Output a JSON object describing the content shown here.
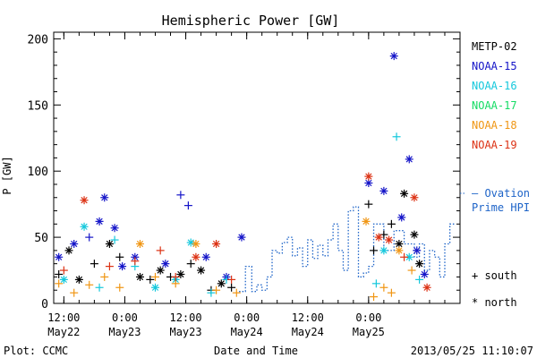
{
  "chart_data": {
    "type": "scatter",
    "title": "Hemispheric Power [GW]",
    "ylabel": "P [GW]",
    "xlabel": "Date and Time",
    "footer_left": "Plot: CCMC",
    "footer_right": "2013/05/25 11:10:07",
    "xlim": [
      "2013-05-22 10:00",
      "2013-05-25 18:00"
    ],
    "ylim": [
      0,
      205
    ],
    "y_ticks": [
      0,
      50,
      100,
      150,
      200
    ],
    "x_ticks": [
      {
        "x": "2013-05-22 12:00",
        "line1": "12:00",
        "line2": "May22"
      },
      {
        "x": "2013-05-23 00:00",
        "line1": "0:00",
        "line2": "May23"
      },
      {
        "x": "2013-05-23 12:00",
        "line1": "12:00",
        "line2": "May23"
      },
      {
        "x": "2013-05-24 00:00",
        "line1": "0:00",
        "line2": "May24"
      },
      {
        "x": "2013-05-24 12:00",
        "line1": "12:00",
        "line2": "May24"
      },
      {
        "x": "2013-05-25 00:00",
        "line1": "0:00",
        "line2": "May25"
      }
    ],
    "hemisphere_legend": [
      {
        "label": "+ south",
        "symbol": "plus"
      },
      {
        "label": "* north",
        "symbol": "star"
      }
    ],
    "ovation": {
      "name": "— Ovation",
      "name2": "Prime HPI",
      "color": "#1e64c8",
      "points": [
        [
          "2013-05-23 22:30",
          9
        ],
        [
          "2013-05-23 23:45",
          28
        ],
        [
          "2013-05-24 01:00",
          9
        ],
        [
          "2013-05-24 02:00",
          14
        ],
        [
          "2013-05-24 03:00",
          10
        ],
        [
          "2013-05-24 04:00",
          20
        ],
        [
          "2013-05-24 05:00",
          40
        ],
        [
          "2013-05-24 06:00",
          38
        ],
        [
          "2013-05-24 07:00",
          46
        ],
        [
          "2013-05-24 08:00",
          50
        ],
        [
          "2013-05-24 09:00",
          36
        ],
        [
          "2013-05-24 10:00",
          42
        ],
        [
          "2013-05-24 11:00",
          28
        ],
        [
          "2013-05-24 12:00",
          48
        ],
        [
          "2013-05-24 13:00",
          34
        ],
        [
          "2013-05-24 14:00",
          44
        ],
        [
          "2013-05-24 15:00",
          36
        ],
        [
          "2013-05-24 16:00",
          48
        ],
        [
          "2013-05-24 17:00",
          60
        ],
        [
          "2013-05-24 18:00",
          40
        ],
        [
          "2013-05-24 19:00",
          25
        ],
        [
          "2013-05-24 20:00",
          70
        ],
        [
          "2013-05-24 21:00",
          73
        ],
        [
          "2013-05-24 22:00",
          20
        ],
        [
          "2013-05-24 23:00",
          23
        ],
        [
          "2013-05-25 00:00",
          28
        ],
        [
          "2013-05-25 01:00",
          60
        ],
        [
          "2013-05-25 03:00",
          40
        ],
        [
          "2013-05-25 05:00",
          55
        ],
        [
          "2013-05-25 07:00",
          45
        ],
        [
          "2013-05-25 09:00",
          35
        ],
        [
          "2013-05-25 10:00",
          45
        ],
        [
          "2013-05-25 11:00",
          25
        ],
        [
          "2013-05-25 12:00",
          40
        ],
        [
          "2013-05-25 13:00",
          35
        ],
        [
          "2013-05-25 14:00",
          20
        ],
        [
          "2013-05-25 15:00",
          45
        ],
        [
          "2013-05-25 16:00",
          60
        ],
        [
          "2013-05-25 17:00",
          60
        ]
      ]
    },
    "series": [
      {
        "name": "METP-02",
        "color": "#000000",
        "points": [
          [
            "2013-05-22 11:00",
            22,
            "plus"
          ],
          [
            "2013-05-22 13:00",
            40,
            "star"
          ],
          [
            "2013-05-22 15:00",
            18,
            "star"
          ],
          [
            "2013-05-22 18:00",
            30,
            "plus"
          ],
          [
            "2013-05-22 21:00",
            45,
            "star"
          ],
          [
            "2013-05-22 23:00",
            35,
            "plus"
          ],
          [
            "2013-05-23 03:00",
            20,
            "star"
          ],
          [
            "2013-05-23 05:00",
            18,
            "plus"
          ],
          [
            "2013-05-23 07:00",
            25,
            "star"
          ],
          [
            "2013-05-23 09:00",
            20,
            "plus"
          ],
          [
            "2013-05-23 11:00",
            22,
            "star"
          ],
          [
            "2013-05-23 13:00",
            30,
            "plus"
          ],
          [
            "2013-05-23 15:00",
            25,
            "star"
          ],
          [
            "2013-05-23 17:00",
            10,
            "plus"
          ],
          [
            "2013-05-23 19:00",
            15,
            "star"
          ],
          [
            "2013-05-23 21:00",
            12,
            "plus"
          ],
          [
            "2013-05-25 00:00",
            75,
            "plus"
          ],
          [
            "2013-05-25 01:00",
            40,
            "plus"
          ],
          [
            "2013-05-25 03:00",
            52,
            "plus"
          ],
          [
            "2013-05-25 04:30",
            60,
            "plus"
          ],
          [
            "2013-05-25 06:00",
            45,
            "star"
          ],
          [
            "2013-05-25 07:00",
            83,
            "star"
          ],
          [
            "2013-05-25 09:00",
            52,
            "star"
          ],
          [
            "2013-05-25 10:00",
            30,
            "star"
          ]
        ]
      },
      {
        "name": "NOAA-15",
        "color": "#1414c8",
        "points": [
          [
            "2013-05-22 11:00",
            35,
            "star"
          ],
          [
            "2013-05-22 14:00",
            45,
            "star"
          ],
          [
            "2013-05-22 17:00",
            50,
            "plus"
          ],
          [
            "2013-05-22 19:00",
            62,
            "star"
          ],
          [
            "2013-05-22 20:00",
            80,
            "star"
          ],
          [
            "2013-05-22 22:00",
            57,
            "star"
          ],
          [
            "2013-05-22 23:30",
            28,
            "star"
          ],
          [
            "2013-05-23 02:00",
            35,
            "star"
          ],
          [
            "2013-05-23 08:00",
            30,
            "star"
          ],
          [
            "2013-05-23 11:00",
            82,
            "plus"
          ],
          [
            "2013-05-23 12:30",
            74,
            "plus"
          ],
          [
            "2013-05-23 16:00",
            35,
            "star"
          ],
          [
            "2013-05-23 20:00",
            20,
            "star"
          ],
          [
            "2013-05-23 23:00",
            50,
            "star"
          ],
          [
            "2013-05-25 00:00",
            91,
            "star"
          ],
          [
            "2013-05-25 03:00",
            85,
            "star"
          ],
          [
            "2013-05-25 05:00",
            187,
            "star"
          ],
          [
            "2013-05-25 06:30",
            65,
            "star"
          ],
          [
            "2013-05-25 08:00",
            109,
            "star"
          ],
          [
            "2013-05-25 09:30",
            40,
            "star"
          ],
          [
            "2013-05-25 11:00",
            22,
            "star"
          ]
        ]
      },
      {
        "name": "NOAA-16",
        "color": "#14c8dc",
        "points": [
          [
            "2013-05-22 12:00",
            18,
            "star"
          ],
          [
            "2013-05-22 16:00",
            58,
            "star"
          ],
          [
            "2013-05-22 19:00",
            12,
            "plus"
          ],
          [
            "2013-05-22 22:00",
            48,
            "plus"
          ],
          [
            "2013-05-23 02:00",
            28,
            "plus"
          ],
          [
            "2013-05-23 06:00",
            12,
            "star"
          ],
          [
            "2013-05-23 10:00",
            18,
            "star"
          ],
          [
            "2013-05-23 13:00",
            46,
            "star"
          ],
          [
            "2013-05-23 17:00",
            8,
            "plus"
          ],
          [
            "2013-05-23 20:00",
            18,
            "plus"
          ],
          [
            "2013-05-25 01:30",
            15,
            "plus"
          ],
          [
            "2013-05-25 03:00",
            40,
            "star"
          ],
          [
            "2013-05-25 05:30",
            126,
            "plus"
          ],
          [
            "2013-05-25 08:00",
            35,
            "star"
          ],
          [
            "2013-05-25 10:00",
            18,
            "plus"
          ]
        ]
      },
      {
        "name": "NOAA-17",
        "color": "#14dc64",
        "points": []
      },
      {
        "name": "NOAA-18",
        "color": "#f09614",
        "points": [
          [
            "2013-05-22 11:00",
            15,
            "plus"
          ],
          [
            "2013-05-22 14:00",
            8,
            "plus"
          ],
          [
            "2013-05-22 17:00",
            14,
            "plus"
          ],
          [
            "2013-05-22 20:00",
            20,
            "plus"
          ],
          [
            "2013-05-22 23:00",
            12,
            "plus"
          ],
          [
            "2013-05-23 03:00",
            45,
            "star"
          ],
          [
            "2013-05-23 06:00",
            20,
            "plus"
          ],
          [
            "2013-05-23 10:00",
            15,
            "plus"
          ],
          [
            "2013-05-23 14:00",
            45,
            "star"
          ],
          [
            "2013-05-23 18:00",
            10,
            "plus"
          ],
          [
            "2013-05-23 22:00",
            8,
            "plus"
          ],
          [
            "2013-05-24 23:30",
            62,
            "star"
          ],
          [
            "2013-05-25 01:00",
            5,
            "plus"
          ],
          [
            "2013-05-25 03:00",
            12,
            "plus"
          ],
          [
            "2013-05-25 04:30",
            8,
            "plus"
          ],
          [
            "2013-05-25 06:00",
            40,
            "star"
          ],
          [
            "2013-05-25 08:30",
            25,
            "plus"
          ]
        ]
      },
      {
        "name": "NOAA-19",
        "color": "#dc3214",
        "points": [
          [
            "2013-05-22 12:00",
            25,
            "plus"
          ],
          [
            "2013-05-22 16:00",
            78,
            "star"
          ],
          [
            "2013-05-22 21:00",
            28,
            "plus"
          ],
          [
            "2013-05-23 02:00",
            32,
            "plus"
          ],
          [
            "2013-05-23 07:00",
            40,
            "plus"
          ],
          [
            "2013-05-23 10:00",
            20,
            "plus"
          ],
          [
            "2013-05-23 14:00",
            35,
            "star"
          ],
          [
            "2013-05-23 18:00",
            45,
            "star"
          ],
          [
            "2013-05-23 21:00",
            18,
            "plus"
          ],
          [
            "2013-05-25 00:00",
            96,
            "star"
          ],
          [
            "2013-05-25 02:00",
            50,
            "star"
          ],
          [
            "2013-05-25 04:00",
            48,
            "star"
          ],
          [
            "2013-05-25 07:00",
            35,
            "plus"
          ],
          [
            "2013-05-25 09:00",
            80,
            "star"
          ],
          [
            "2013-05-25 11:30",
            12,
            "star"
          ]
        ]
      }
    ]
  }
}
